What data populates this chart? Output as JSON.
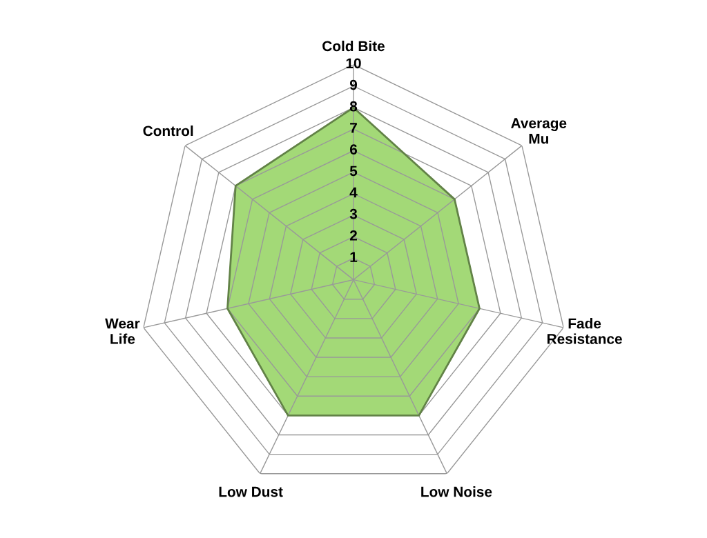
{
  "chart_data": {
    "type": "radar",
    "categories": [
      "Cold Bite",
      "Average\nMu",
      "Fade\nResistance",
      "Low Noise",
      "Low Dust",
      "Wear\nLife",
      "Control"
    ],
    "series": [
      {
        "color": "#a3d977",
        "values": [
          8,
          6,
          6,
          7,
          7,
          6,
          7
        ]
      }
    ],
    "ylim": [
      0,
      10
    ],
    "yticks": [
      1,
      2,
      3,
      4,
      5,
      6,
      7,
      8,
      9,
      10
    ],
    "grid": true
  }
}
